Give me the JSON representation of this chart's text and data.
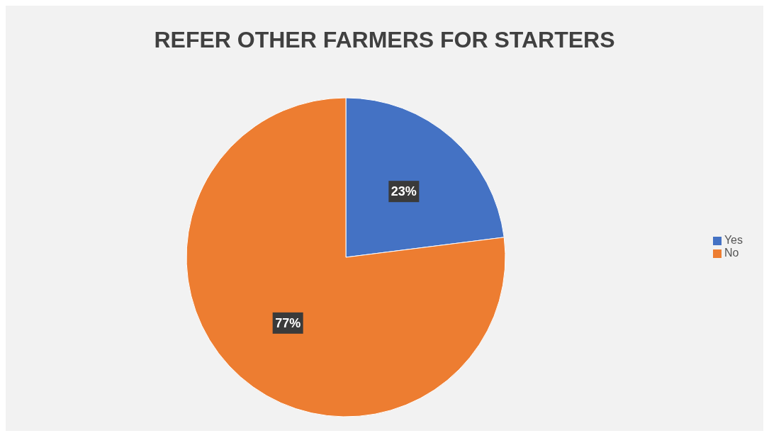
{
  "chart_data": {
    "type": "pie",
    "title": "REFER OTHER FARMERS FOR STARTERS",
    "categories": [
      "Yes",
      "No"
    ],
    "values": [
      23,
      77
    ],
    "colors": [
      "#4472c4",
      "#ed7d31"
    ],
    "value_labels": [
      "23%",
      "77%"
    ],
    "legend": "right"
  }
}
